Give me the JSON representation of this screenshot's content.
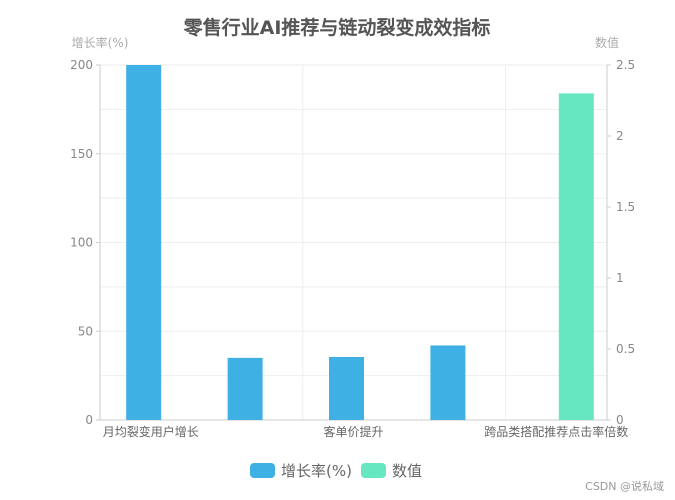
{
  "chart_data": {
    "type": "bar",
    "title": "零售行业AI推荐与链动裂变成效指标",
    "categories": [
      "月均裂变用户增长",
      "",
      "客单价提升",
      "",
      "跨品类搭配推荐点击率倍数"
    ],
    "left_axis": {
      "name": "增长率(%)",
      "ylim": [
        0,
        200
      ],
      "ticks": [
        0,
        50,
        100,
        150,
        200
      ]
    },
    "right_axis": {
      "name": "数值",
      "ylim": [
        0,
        2.5
      ],
      "ticks": [
        "0",
        "0.5",
        "1",
        "1.5",
        "2",
        "2.5"
      ]
    },
    "series": [
      {
        "name": "增长率(%)",
        "axis": "left",
        "color": "#3eb0e3",
        "values": [
          200,
          35,
          35.5,
          42,
          null
        ]
      },
      {
        "name": "数值",
        "axis": "right",
        "color": "#66e6c1",
        "values": [
          null,
          null,
          null,
          null,
          2.3
        ]
      }
    ],
    "grid": true,
    "legend_position": "bottom-center"
  },
  "watermark": "CSDN @说私域"
}
